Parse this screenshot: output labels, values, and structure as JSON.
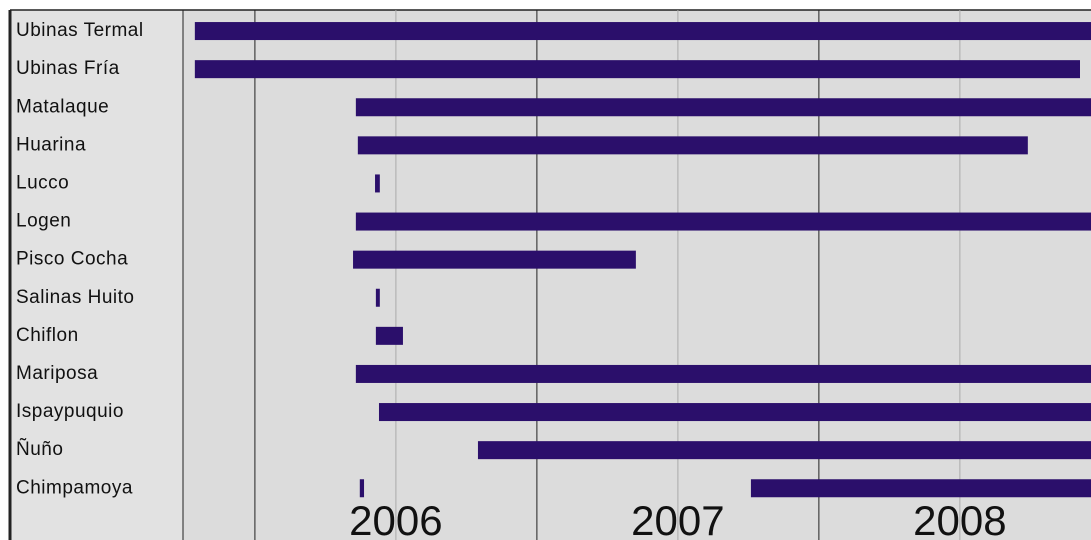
{
  "chart_data": {
    "type": "timeline",
    "rows": [
      {
        "name": "Ubinas Termal",
        "segments": [
          [
            2005.787,
            2008.965
          ]
        ]
      },
      {
        "name": "Ubinas Fría",
        "segments": [
          [
            2005.787,
            2008.926
          ]
        ]
      },
      {
        "name": "Matalaque",
        "segments": [
          [
            2006.358,
            2008.965
          ]
        ]
      },
      {
        "name": "Huarina",
        "segments": [
          [
            2006.365,
            2008.741
          ]
        ]
      },
      {
        "name": "Lucco",
        "segments": [
          [
            2006.426,
            2006.443
          ]
        ]
      },
      {
        "name": "Logen",
        "segments": [
          [
            2006.358,
            2008.965
          ]
        ]
      },
      {
        "name": "Pisco Cocha",
        "segments": [
          [
            2006.348,
            2007.351
          ]
        ]
      },
      {
        "name": "Salinas Huito",
        "segments": [
          [
            2006.429,
            2006.443
          ]
        ]
      },
      {
        "name": "Chiflon",
        "segments": [
          [
            2006.429,
            2006.525
          ]
        ]
      },
      {
        "name": "Mariposa",
        "segments": [
          [
            2006.358,
            2008.965
          ]
        ]
      },
      {
        "name": "Ispaypuquio",
        "segments": [
          [
            2006.44,
            2008.965
          ]
        ]
      },
      {
        "name": "Ñuño",
        "segments": [
          [
            2006.791,
            2008.965
          ]
        ]
      },
      {
        "name": "Chimpamoya",
        "segments": [
          [
            2006.372,
            2006.387
          ],
          [
            2007.759,
            2008.965
          ]
        ]
      }
    ],
    "color": "#2b0f6b",
    "xlim": [
      2005.745,
      2008.965
    ],
    "xticks": [
      {
        "value": 2006.5,
        "label": "2006"
      },
      {
        "value": 2007.5,
        "label": "2007"
      },
      {
        "value": 2008.5,
        "label": "2008"
      }
    ],
    "year_boundaries": [
      2006,
      2007,
      2008
    ],
    "grid": true
  }
}
